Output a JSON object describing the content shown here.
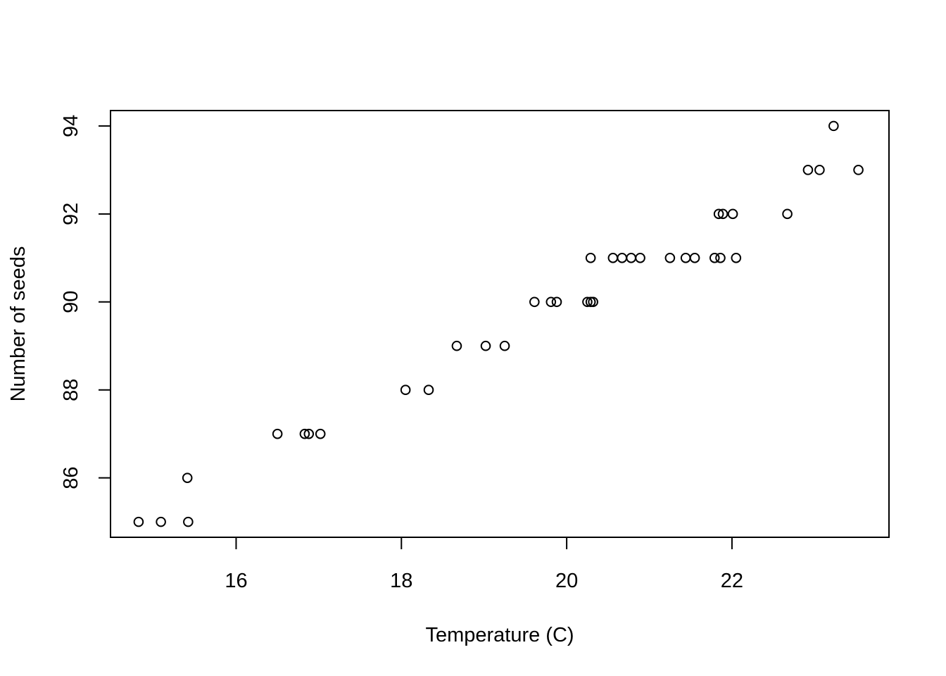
{
  "chart_data": {
    "type": "scatter",
    "title": "",
    "xlabel": "Temperature (C)",
    "ylabel": "Number of seeds",
    "xlim": [
      14.48,
      23.9
    ],
    "ylim": [
      84.65,
      94.35
    ],
    "xticks": [
      16,
      18,
      20,
      22
    ],
    "xtick_labels": [
      "16",
      "18",
      "20",
      "22"
    ],
    "yticks": [
      86,
      88,
      90,
      92,
      94
    ],
    "ytick_labels": [
      "86",
      "88",
      "90",
      "92",
      "94"
    ],
    "grid": false,
    "legend": null,
    "marker": "open-circle",
    "point_color": "#000000",
    "points": [
      {
        "x": 14.82,
        "y": 85
      },
      {
        "x": 15.09,
        "y": 85
      },
      {
        "x": 15.42,
        "y": 85
      },
      {
        "x": 15.41,
        "y": 86
      },
      {
        "x": 16.5,
        "y": 87
      },
      {
        "x": 16.83,
        "y": 87
      },
      {
        "x": 16.88,
        "y": 87
      },
      {
        "x": 17.02,
        "y": 87
      },
      {
        "x": 18.05,
        "y": 88
      },
      {
        "x": 18.33,
        "y": 88
      },
      {
        "x": 18.67,
        "y": 89
      },
      {
        "x": 19.02,
        "y": 89
      },
      {
        "x": 19.25,
        "y": 89
      },
      {
        "x": 19.61,
        "y": 90
      },
      {
        "x": 19.81,
        "y": 90
      },
      {
        "x": 19.88,
        "y": 90
      },
      {
        "x": 20.25,
        "y": 90
      },
      {
        "x": 20.29,
        "y": 90
      },
      {
        "x": 20.32,
        "y": 90
      },
      {
        "x": 20.29,
        "y": 91
      },
      {
        "x": 20.56,
        "y": 91
      },
      {
        "x": 20.67,
        "y": 91
      },
      {
        "x": 20.78,
        "y": 91
      },
      {
        "x": 20.89,
        "y": 91
      },
      {
        "x": 21.25,
        "y": 91
      },
      {
        "x": 21.44,
        "y": 91
      },
      {
        "x": 21.55,
        "y": 91
      },
      {
        "x": 21.79,
        "y": 91
      },
      {
        "x": 21.86,
        "y": 91
      },
      {
        "x": 22.05,
        "y": 91
      },
      {
        "x": 21.84,
        "y": 92
      },
      {
        "x": 21.89,
        "y": 92
      },
      {
        "x": 22.01,
        "y": 92
      },
      {
        "x": 22.67,
        "y": 92
      },
      {
        "x": 22.92,
        "y": 93
      },
      {
        "x": 23.06,
        "y": 93
      },
      {
        "x": 23.53,
        "y": 93
      },
      {
        "x": 23.23,
        "y": 94
      }
    ]
  }
}
